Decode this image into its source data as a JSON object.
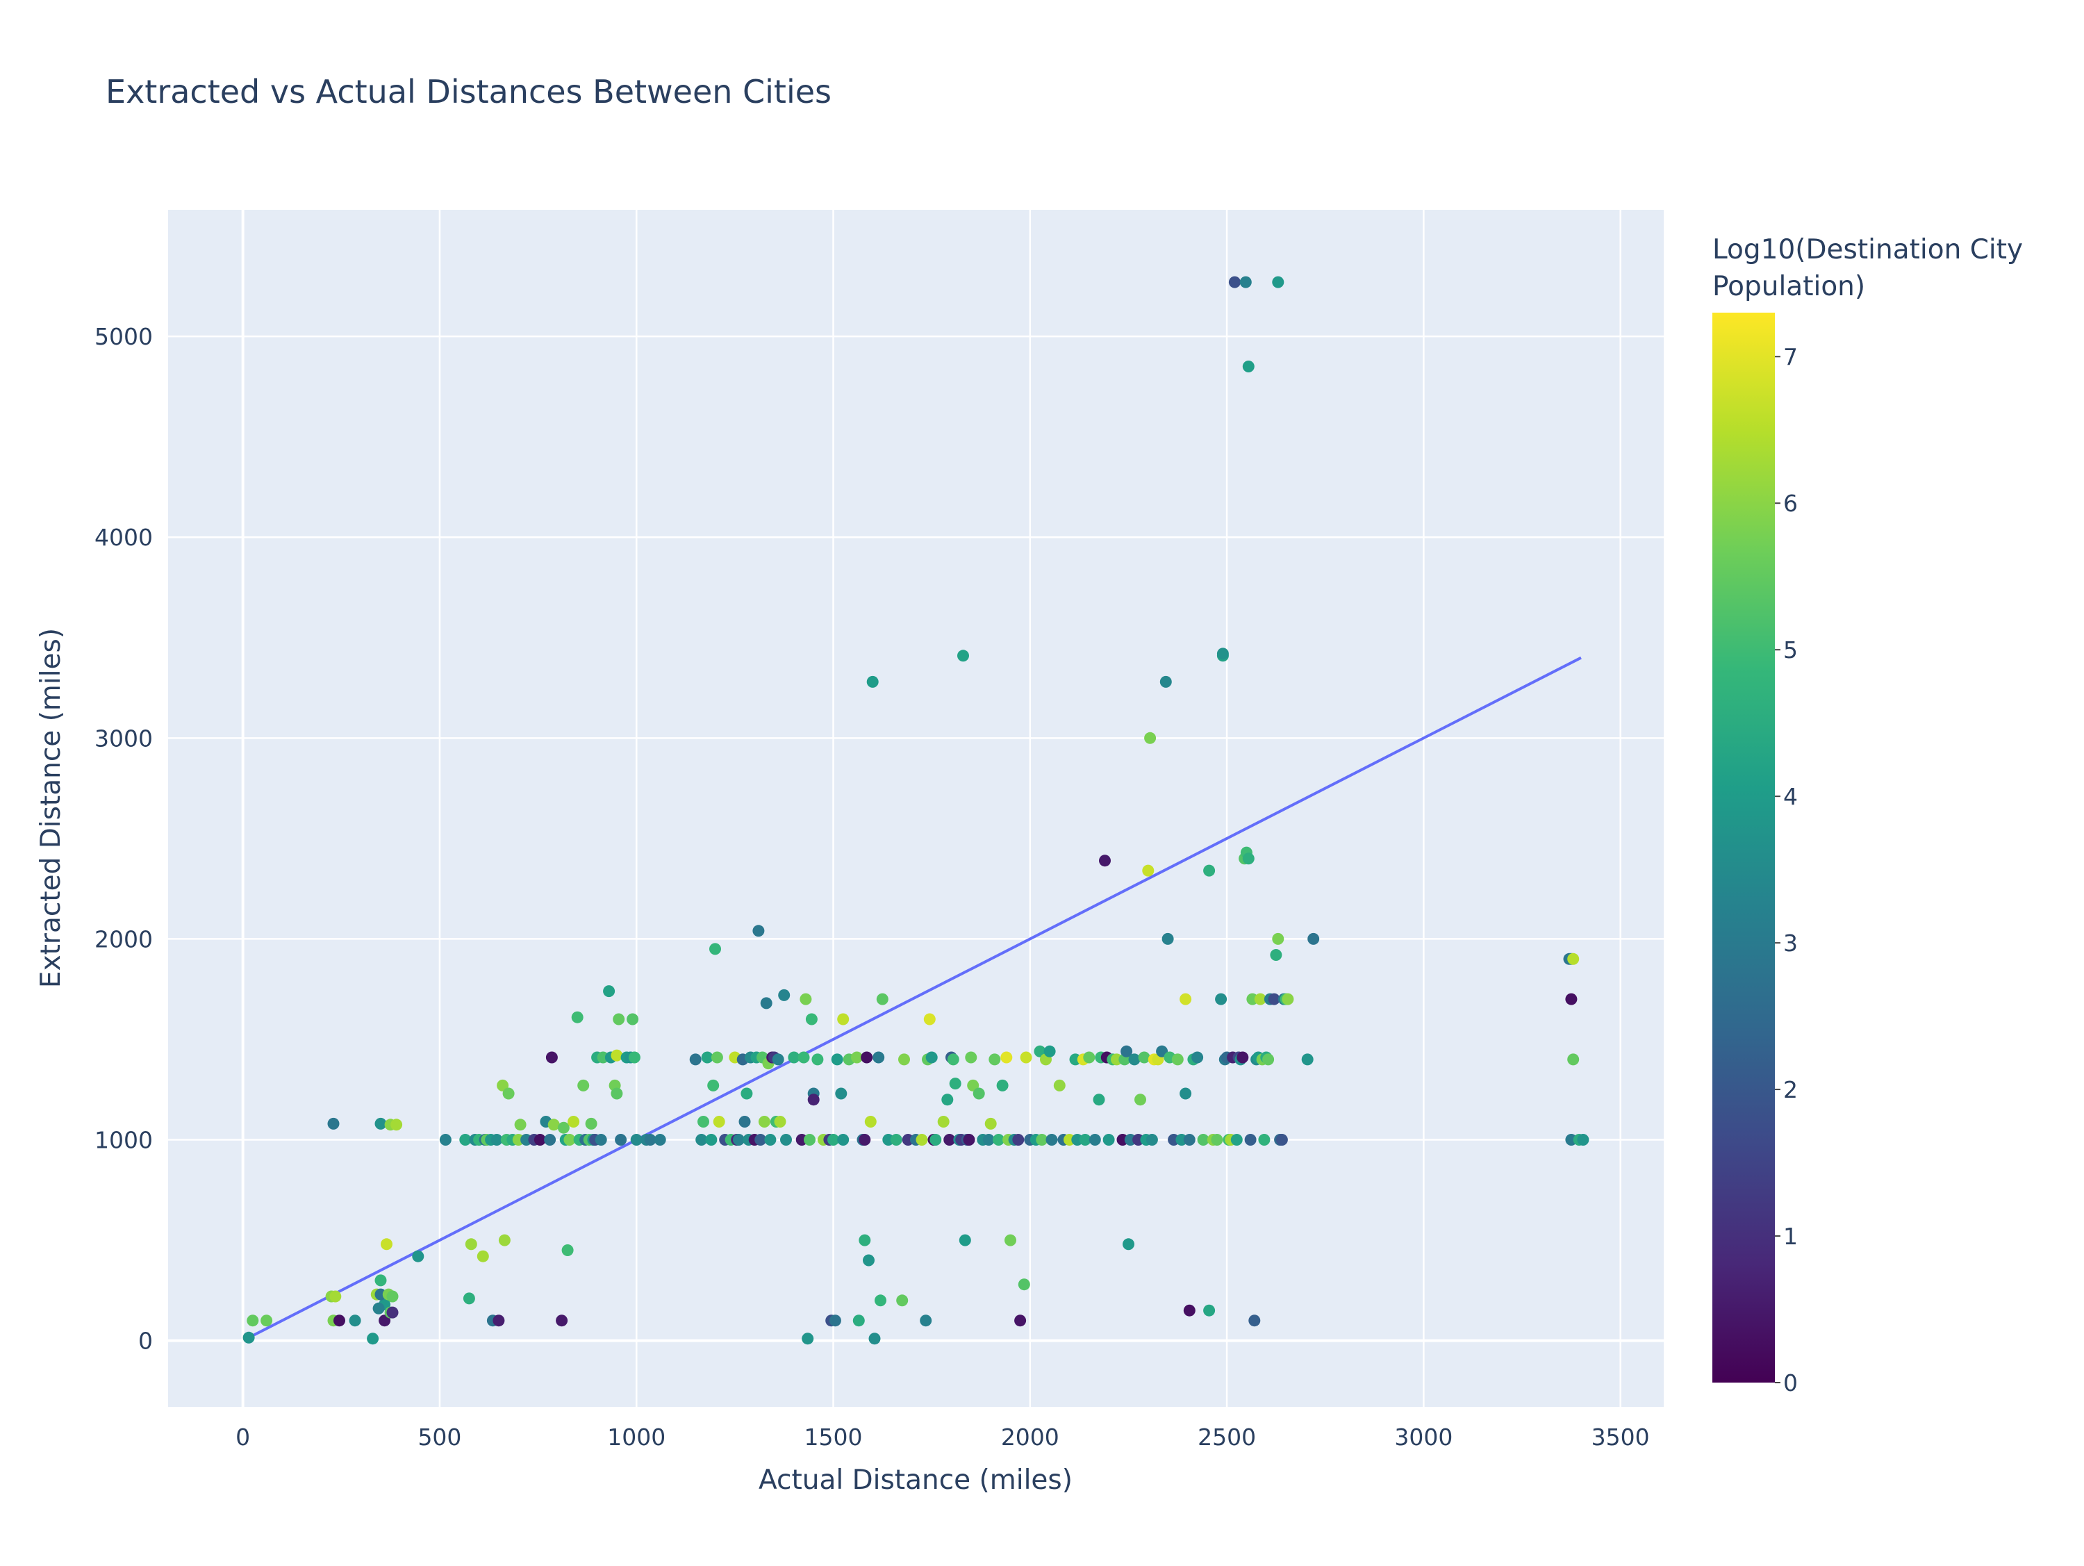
{
  "chart_data": {
    "type": "scatter",
    "title": "Extracted vs Actual Distances Between Cities",
    "xlabel": "Actual Distance (miles)",
    "ylabel": "Extracted Distance (miles)",
    "xlim": [
      -190,
      3610
    ],
    "ylim": [
      -330,
      5630
    ],
    "xticks": [
      0,
      500,
      1000,
      1500,
      2000,
      2500,
      3000,
      3500
    ],
    "yticks": [
      0,
      1000,
      2000,
      3000,
      4000,
      5000
    ],
    "grid": true,
    "legend": "none",
    "colorbar": {
      "title_lines": [
        "Log10(Destination City",
        "Population)"
      ],
      "range": [
        0,
        7.3
      ],
      "ticks": [
        0,
        1,
        2,
        3,
        4,
        5,
        6,
        7
      ],
      "colorscale": "Viridis"
    },
    "reference_line": {
      "x": [
        15,
        3400
      ],
      "y": [
        15,
        3400
      ],
      "color": "#636efa"
    },
    "colors": {
      "plot_bg": "#e5ecf6",
      "grid": "#ffffff",
      "text": "#2a3f5f",
      "line": "#636efa",
      "viridis": [
        "#440154",
        "#482878",
        "#3e4989",
        "#31688e",
        "#26828e",
        "#1f9e89",
        "#35b779",
        "#6ece58",
        "#b5de2b",
        "#fde725"
      ]
    },
    "points": [
      [
        15,
        15,
        3.8
      ],
      [
        25,
        100,
        5.5
      ],
      [
        60,
        100,
        5.6
      ],
      [
        225,
        220,
        6.0
      ],
      [
        235,
        220,
        6.3
      ],
      [
        230,
        100,
        5.8
      ],
      [
        245,
        100,
        0.3
      ],
      [
        285,
        100,
        3.6
      ],
      [
        230,
        1080,
        2.9
      ],
      [
        330,
        10,
        3.9
      ],
      [
        340,
        230,
        6.2
      ],
      [
        350,
        300,
        4.8
      ],
      [
        360,
        180,
        3.9
      ],
      [
        345,
        160,
        3.2
      ],
      [
        350,
        230,
        2.8
      ],
      [
        360,
        100,
        0.5
      ],
      [
        365,
        480,
        6.7
      ],
      [
        370,
        230,
        5.8
      ],
      [
        375,
        140,
        5.5
      ],
      [
        380,
        140,
        1.0
      ],
      [
        380,
        220,
        5.5
      ],
      [
        350,
        1080,
        3.7
      ],
      [
        375,
        1075,
        6.0
      ],
      [
        390,
        1075,
        6.3
      ],
      [
        445,
        420,
        3.8
      ],
      [
        515,
        1000,
        3.2
      ],
      [
        565,
        1000,
        4.3
      ],
      [
        575,
        210,
        4.6
      ],
      [
        580,
        480,
        6.2
      ],
      [
        590,
        1000,
        3.5
      ],
      [
        600,
        1000,
        4.8
      ],
      [
        610,
        420,
        6.3
      ],
      [
        615,
        1000,
        2.8
      ],
      [
        620,
        1000,
        5.5
      ],
      [
        630,
        1000,
        3.9
      ],
      [
        635,
        100,
        2.8
      ],
      [
        645,
        1000,
        3.6
      ],
      [
        650,
        100,
        0.6
      ],
      [
        660,
        1270,
        6.0
      ],
      [
        665,
        500,
        6.2
      ],
      [
        670,
        1000,
        5.0
      ],
      [
        675,
        1230,
        5.6
      ],
      [
        685,
        1000,
        4.5
      ],
      [
        700,
        1000,
        6.0
      ],
      [
        705,
        1075,
        5.8
      ],
      [
        720,
        1000,
        3.2
      ],
      [
        740,
        1000,
        1.4
      ],
      [
        755,
        1000,
        0.3
      ],
      [
        770,
        1090,
        3.3
      ],
      [
        780,
        1000,
        2.8
      ],
      [
        785,
        1410,
        0.4
      ],
      [
        790,
        1075,
        6.0
      ],
      [
        810,
        100,
        0.5
      ],
      [
        815,
        1060,
        5.5
      ],
      [
        820,
        1000,
        4.2
      ],
      [
        825,
        450,
        5.0
      ],
      [
        830,
        1000,
        5.8
      ],
      [
        840,
        1090,
        6.5
      ],
      [
        850,
        1610,
        5.0
      ],
      [
        855,
        1000,
        4.8
      ],
      [
        865,
        1270,
        5.6
      ],
      [
        870,
        1000,
        2.7
      ],
      [
        880,
        1000,
        5.3
      ],
      [
        885,
        1080,
        5.5
      ],
      [
        890,
        1000,
        3.8
      ],
      [
        895,
        1000,
        1.8
      ],
      [
        900,
        1410,
        4.5
      ],
      [
        910,
        1000,
        3.0
      ],
      [
        915,
        1410,
        5.2
      ],
      [
        930,
        1740,
        4.2
      ],
      [
        935,
        1410,
        3.9
      ],
      [
        945,
        1270,
        5.7
      ],
      [
        950,
        1230,
        5.4
      ],
      [
        950,
        1420,
        6.6
      ],
      [
        955,
        1600,
        5.5
      ],
      [
        960,
        1000,
        2.8
      ],
      [
        975,
        1410,
        4.0
      ],
      [
        985,
        1410,
        3.8
      ],
      [
        990,
        1600,
        5.3
      ],
      [
        995,
        1410,
        4.9
      ],
      [
        1000,
        1000,
        3.5
      ],
      [
        1025,
        1000,
        3.3
      ],
      [
        1035,
        1000,
        2.9
      ],
      [
        1060,
        1000,
        3.1
      ],
      [
        1150,
        1400,
        2.8
      ],
      [
        1165,
        1000,
        3.5
      ],
      [
        1170,
        1090,
        5.1
      ],
      [
        1180,
        1410,
        4.3
      ],
      [
        1190,
        1000,
        4.0
      ],
      [
        1195,
        1270,
        5.0
      ],
      [
        1200,
        1950,
        4.8
      ],
      [
        1205,
        1410,
        5.5
      ],
      [
        1210,
        1090,
        6.6
      ],
      [
        1225,
        1000,
        1.8
      ],
      [
        1240,
        1000,
        5.0
      ],
      [
        1250,
        1410,
        6.6
      ],
      [
        1255,
        1000,
        0.8
      ],
      [
        1260,
        1000,
        3.2
      ],
      [
        1270,
        1400,
        2.5
      ],
      [
        1275,
        1090,
        2.8
      ],
      [
        1280,
        1230,
        4.5
      ],
      [
        1285,
        1000,
        3.6
      ],
      [
        1290,
        1410,
        3.5
      ],
      [
        1300,
        1000,
        0.4
      ],
      [
        1305,
        1410,
        4.2
      ],
      [
        1310,
        2040,
        2.9
      ],
      [
        1315,
        1000,
        2.2
      ],
      [
        1320,
        1410,
        5.3
      ],
      [
        1325,
        1090,
        6.0
      ],
      [
        1330,
        1680,
        3.0
      ],
      [
        1335,
        1380,
        5.8
      ],
      [
        1340,
        1000,
        3.8
      ],
      [
        1345,
        1410,
        0.5
      ],
      [
        1350,
        1410,
        1.2
      ],
      [
        1355,
        1090,
        5.0
      ],
      [
        1360,
        1400,
        3.2
      ],
      [
        1365,
        1090,
        6.3
      ],
      [
        1375,
        1720,
        3.3
      ],
      [
        1380,
        1000,
        3.6
      ],
      [
        1400,
        1410,
        4.6
      ],
      [
        1420,
        1000,
        0.5
      ],
      [
        1425,
        1410,
        4.9
      ],
      [
        1430,
        1700,
        5.8
      ],
      [
        1435,
        10,
        3.8
      ],
      [
        1440,
        1000,
        5.3
      ],
      [
        1445,
        1600,
        4.9
      ],
      [
        1450,
        1230,
        3.0
      ],
      [
        1450,
        1200,
        0.7
      ],
      [
        1460,
        1400,
        4.9
      ],
      [
        1475,
        1000,
        6.1
      ],
      [
        1490,
        1000,
        1.2
      ],
      [
        1495,
        100,
        1.8
      ],
      [
        1500,
        1000,
        4.5
      ],
      [
        1505,
        100,
        2.8
      ],
      [
        1510,
        1400,
        4.0
      ],
      [
        1520,
        1230,
        3.6
      ],
      [
        1525,
        1000,
        3.8
      ],
      [
        1525,
        1600,
        6.6
      ],
      [
        1540,
        1400,
        5.4
      ],
      [
        1560,
        1410,
        5.8
      ],
      [
        1565,
        100,
        4.5
      ],
      [
        1575,
        1000,
        2.8
      ],
      [
        1580,
        1000,
        0.5
      ],
      [
        1580,
        500,
        4.6
      ],
      [
        1585,
        1410,
        0.3
      ],
      [
        1590,
        400,
        3.8
      ],
      [
        1595,
        1090,
        6.5
      ],
      [
        1600,
        3280,
        4.0
      ],
      [
        1605,
        10,
        3.6
      ],
      [
        1615,
        1410,
        3.0
      ],
      [
        1620,
        200,
        4.8
      ],
      [
        1625,
        1700,
        5.4
      ],
      [
        1640,
        1000,
        3.9
      ],
      [
        1660,
        1000,
        4.6
      ],
      [
        1675,
        200,
        5.5
      ],
      [
        1680,
        1400,
        5.9
      ],
      [
        1690,
        1000,
        1.2
      ],
      [
        1710,
        1000,
        2.8
      ],
      [
        1725,
        1000,
        6.4
      ],
      [
        1735,
        100,
        3.2
      ],
      [
        1740,
        1400,
        5.5
      ],
      [
        1745,
        1600,
        6.9
      ],
      [
        1750,
        1410,
        3.9
      ],
      [
        1755,
        1000,
        0.3
      ],
      [
        1760,
        1000,
        4.5
      ],
      [
        1780,
        1090,
        6.3
      ],
      [
        1790,
        1200,
        4.3
      ],
      [
        1795,
        1000,
        0.5
      ],
      [
        1800,
        1410,
        2.2
      ],
      [
        1805,
        1400,
        5.0
      ],
      [
        1810,
        1280,
        4.6
      ],
      [
        1820,
        1000,
        3.6
      ],
      [
        1825,
        1000,
        1.3
      ],
      [
        1830,
        3410,
        4.2
      ],
      [
        1835,
        500,
        4.0
      ],
      [
        1840,
        1000,
        2.1
      ],
      [
        1845,
        1000,
        0.4
      ],
      [
        1850,
        1410,
        5.6
      ],
      [
        1855,
        1270,
        5.8
      ],
      [
        1870,
        1230,
        5.3
      ],
      [
        1880,
        1000,
        3.6
      ],
      [
        1895,
        1000,
        3.2
      ],
      [
        1900,
        1080,
        6.3
      ],
      [
        1910,
        1400,
        5.5
      ],
      [
        1920,
        1000,
        4.8
      ],
      [
        1930,
        1270,
        4.6
      ],
      [
        1940,
        1410,
        7.0
      ],
      [
        1945,
        1000,
        5.9
      ],
      [
        1950,
        500,
        5.7
      ],
      [
        1960,
        1000,
        3.5
      ],
      [
        1970,
        1000,
        1.3
      ],
      [
        1975,
        100,
        0.4
      ],
      [
        1985,
        280,
        5.3
      ],
      [
        1990,
        1410,
        6.7
      ],
      [
        2000,
        1000,
        2.5
      ],
      [
        2015,
        1000,
        4.0
      ],
      [
        2025,
        1440,
        4.6
      ],
      [
        2030,
        1000,
        5.5
      ],
      [
        2040,
        1400,
        6.2
      ],
      [
        2050,
        1440,
        4.0
      ],
      [
        2055,
        1000,
        3.0
      ],
      [
        2075,
        1270,
        6.1
      ],
      [
        2085,
        1000,
        2.7
      ],
      [
        2100,
        1000,
        6.5
      ],
      [
        2115,
        1400,
        4.4
      ],
      [
        2120,
        1000,
        3.8
      ],
      [
        2135,
        1400,
        6.9
      ],
      [
        2140,
        1000,
        4.3
      ],
      [
        2150,
        1410,
        5.5
      ],
      [
        2165,
        1000,
        3.1
      ],
      [
        2175,
        1200,
        4.4
      ],
      [
        2180,
        1410,
        4.9
      ],
      [
        2190,
        2390,
        0.5
      ],
      [
        2195,
        1410,
        0.3
      ],
      [
        2200,
        1000,
        3.9
      ],
      [
        2210,
        1400,
        5.0
      ],
      [
        2220,
        1400,
        6.2
      ],
      [
        2235,
        1000,
        0.3
      ],
      [
        2240,
        1400,
        5.3
      ],
      [
        2245,
        1440,
        2.8
      ],
      [
        2250,
        480,
        3.9
      ],
      [
        2255,
        1000,
        3.0
      ],
      [
        2265,
        1400,
        3.5
      ],
      [
        2275,
        1000,
        1.2
      ],
      [
        2280,
        1200,
        5.7
      ],
      [
        2290,
        1410,
        5.3
      ],
      [
        2295,
        1000,
        4.0
      ],
      [
        2300,
        2340,
        6.7
      ],
      [
        2305,
        3000,
        5.8
      ],
      [
        2310,
        1000,
        3.5
      ],
      [
        2315,
        1400,
        7.0
      ],
      [
        2325,
        1400,
        6.8
      ],
      [
        2335,
        1440,
        3.0
      ],
      [
        2345,
        3280,
        3.4
      ],
      [
        2350,
        2000,
        3.2
      ],
      [
        2355,
        1410,
        5.0
      ],
      [
        2365,
        1000,
        2.0
      ],
      [
        2375,
        1400,
        5.6
      ],
      [
        2385,
        1000,
        3.8
      ],
      [
        2395,
        1700,
        6.8
      ],
      [
        2395,
        1230,
        3.6
      ],
      [
        2405,
        150,
        0.3
      ],
      [
        2405,
        1000,
        2.8
      ],
      [
        2415,
        1400,
        4.6
      ],
      [
        2425,
        1410,
        3.3
      ],
      [
        2440,
        1000,
        5.3
      ],
      [
        2455,
        2340,
        4.6
      ],
      [
        2455,
        150,
        4.3
      ],
      [
        2465,
        1000,
        6.0
      ],
      [
        2475,
        1000,
        5.5
      ],
      [
        2485,
        1700,
        3.6
      ],
      [
        2490,
        3410,
        4.2
      ],
      [
        2490,
        3420,
        3.7
      ],
      [
        2495,
        1400,
        3.0
      ],
      [
        2500,
        1410,
        2.5
      ],
      [
        2505,
        1000,
        5.0
      ],
      [
        2510,
        1000,
        6.3
      ],
      [
        2515,
        1410,
        0.7
      ],
      [
        2520,
        5270,
        1.8
      ],
      [
        2525,
        1000,
        4.2
      ],
      [
        2530,
        1410,
        1.5
      ],
      [
        2535,
        1400,
        3.7
      ],
      [
        2540,
        1410,
        0.4
      ],
      [
        2545,
        2400,
        5.3
      ],
      [
        2548,
        5270,
        3.2
      ],
      [
        2550,
        2430,
        5.0
      ],
      [
        2555,
        2400,
        4.6
      ],
      [
        2555,
        4850,
        4.1
      ],
      [
        2560,
        1000,
        2.2
      ],
      [
        2565,
        1700,
        5.6
      ],
      [
        2570,
        100,
        2.2
      ],
      [
        2575,
        1400,
        3.5
      ],
      [
        2580,
        1410,
        4.0
      ],
      [
        2585,
        1700,
        6.3
      ],
      [
        2590,
        1400,
        5.8
      ],
      [
        2595,
        1000,
        4.7
      ],
      [
        2600,
        1410,
        4.5
      ],
      [
        2605,
        1400,
        5.5
      ],
      [
        2610,
        1700,
        3.1
      ],
      [
        2620,
        1700,
        1.7
      ],
      [
        2625,
        1920,
        4.6
      ],
      [
        2630,
        5270,
        3.9
      ],
      [
        2630,
        2000,
        5.8
      ],
      [
        2635,
        1000,
        2.5
      ],
      [
        2640,
        1000,
        1.9
      ],
      [
        2645,
        1700,
        3.0
      ],
      [
        2650,
        1700,
        5.0
      ],
      [
        2655,
        1700,
        6.0
      ],
      [
        2705,
        1400,
        3.8
      ],
      [
        2720,
        2000,
        2.8
      ],
      [
        3370,
        1900,
        2.8
      ],
      [
        3375,
        1900,
        3.0
      ],
      [
        3375,
        1700,
        0.3
      ],
      [
        3380,
        1900,
        6.5
      ],
      [
        3380,
        1400,
        5.5
      ],
      [
        3375,
        1000,
        3.0
      ],
      [
        3395,
        1000,
        4.5
      ],
      [
        3405,
        1000,
        3.8
      ]
    ]
  }
}
